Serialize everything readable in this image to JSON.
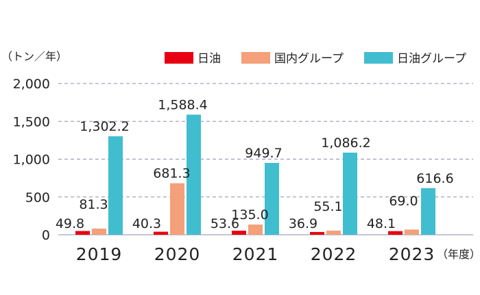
{
  "chart_data": {
    "type": "bar",
    "y_unit_label": "（トン／年）",
    "x_unit_label": "（年度）",
    "categories": [
      "2019",
      "2020",
      "2021",
      "2022",
      "2023"
    ],
    "series": [
      {
        "name": "日油",
        "color": "#e60012",
        "values": [
          49.8,
          40.3,
          53.6,
          36.9,
          48.1
        ],
        "labels": [
          "49.8",
          "40.3",
          "53.6",
          "36.9",
          "48.1"
        ]
      },
      {
        "name": "国内グループ",
        "color": "#f4a07a",
        "values": [
          81.3,
          681.3,
          135.0,
          55.1,
          69.0
        ],
        "labels": [
          "81.3",
          "681.3",
          "135.0",
          "55.1",
          "69.0"
        ]
      },
      {
        "name": "日油グループ",
        "color": "#41bdd0",
        "values": [
          1302.2,
          1588.4,
          949.7,
          1086.2,
          616.6
        ],
        "labels": [
          "1,302.2",
          "1,588.4",
          "949.7",
          "1,086.2",
          "616.6"
        ]
      }
    ],
    "ylim": [
      0,
      2000
    ],
    "yticks": [
      0,
      500,
      1000,
      1500,
      2000
    ],
    "ytick_labels": [
      "0",
      "500",
      "1,000",
      "1,500",
      "2,000"
    ],
    "grid": true,
    "legend_position": "top-right"
  }
}
